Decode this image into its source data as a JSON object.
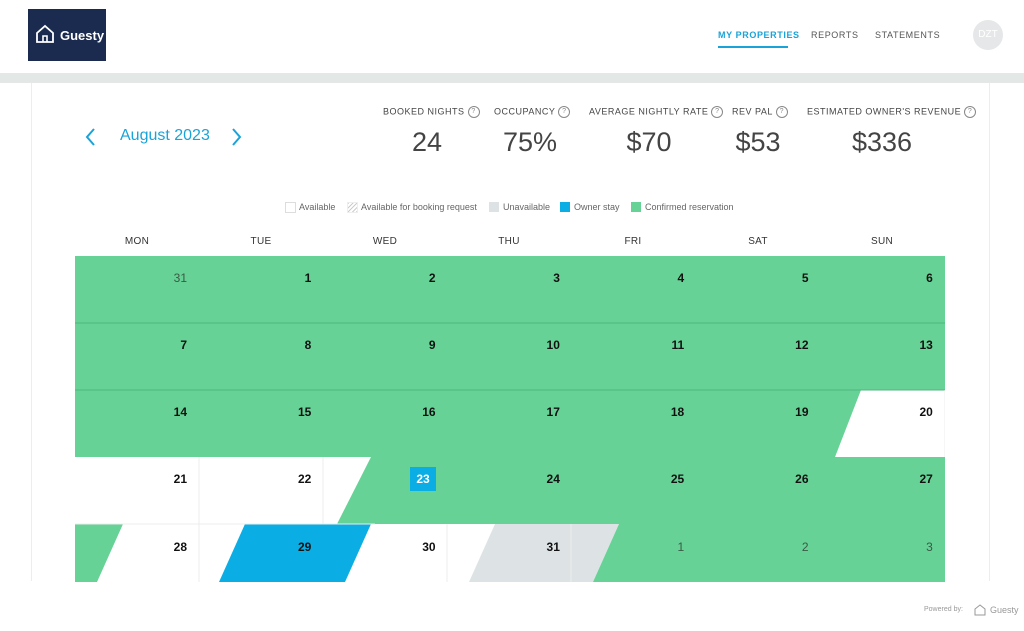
{
  "app": {
    "logo_text": "Guesty",
    "nav": [
      {
        "label": "MY PROPERTIES",
        "active": true
      },
      {
        "label": "REPORTS",
        "active": false
      },
      {
        "label": "STATEMENTS",
        "active": false
      }
    ],
    "avatar_initials": "DZT"
  },
  "calendar_header": {
    "month": "August 2023",
    "prev_icon": "chevron-left-icon",
    "next_icon": "chevron-right-icon"
  },
  "stats": [
    {
      "label": "BOOKED NIGHTS",
      "value": "24"
    },
    {
      "label": "OCCUPANCY",
      "value": "75%"
    },
    {
      "label": "AVERAGE NIGHTLY RATE",
      "value": "$70"
    },
    {
      "label": "REV PAL",
      "value": "$53"
    },
    {
      "label": "ESTIMATED OWNER'S REVENUE",
      "value": "$336"
    }
  ],
  "legend": [
    {
      "label": "Available",
      "color": "#ffffff"
    },
    {
      "label": "Available for booking request",
      "color": "#eeeeee"
    },
    {
      "label": "Unavailable",
      "color": "#dde3e5"
    },
    {
      "label": "Owner stay",
      "color": "#0aaee4"
    },
    {
      "label": "Confirmed reservation",
      "color": "#66d296"
    }
  ],
  "weekdays": [
    "MON",
    "TUE",
    "WED",
    "THU",
    "FRI",
    "SAT",
    "SUN"
  ],
  "weeks": [
    [
      {
        "day": "31",
        "other": true
      },
      {
        "day": "1"
      },
      {
        "day": "2"
      },
      {
        "day": "3"
      },
      {
        "day": "4"
      },
      {
        "day": "5"
      },
      {
        "day": "6"
      }
    ],
    [
      {
        "day": "7"
      },
      {
        "day": "8"
      },
      {
        "day": "9"
      },
      {
        "day": "10"
      },
      {
        "day": "11"
      },
      {
        "day": "12"
      },
      {
        "day": "13"
      }
    ],
    [
      {
        "day": "14"
      },
      {
        "day": "15"
      },
      {
        "day": "16"
      },
      {
        "day": "17"
      },
      {
        "day": "18"
      },
      {
        "day": "19"
      },
      {
        "day": "20"
      }
    ],
    [
      {
        "day": "21"
      },
      {
        "day": "22"
      },
      {
        "day": "23",
        "today": true
      },
      {
        "day": "24"
      },
      {
        "day": "25"
      },
      {
        "day": "26"
      },
      {
        "day": "27"
      }
    ],
    [
      {
        "day": "28"
      },
      {
        "day": "29"
      },
      {
        "day": "30"
      },
      {
        "day": "31"
      },
      {
        "day": "1",
        "other": true
      },
      {
        "day": "2",
        "other": true
      },
      {
        "day": "3",
        "other": true
      }
    ]
  ],
  "colors": {
    "accent": "#1aa3d8",
    "confirmed": "#66d296",
    "owner_stay": "#0aaee4",
    "unavailable": "#dde3e5",
    "today_badge": "#0aaee4"
  },
  "footer": {
    "powered_by": "Powered by:",
    "brand": "Guesty"
  }
}
